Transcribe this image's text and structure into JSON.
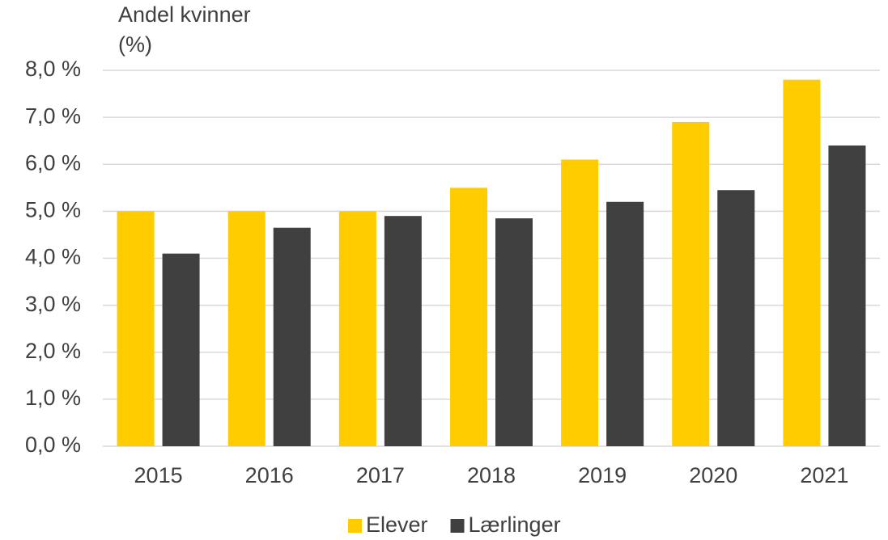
{
  "chart_data": {
    "type": "bar",
    "y_axis_label": [
      "Andel kvinner",
      "(%)"
    ],
    "categories": [
      "2015",
      "2016",
      "2017",
      "2018",
      "2019",
      "2020",
      "2021"
    ],
    "series": [
      {
        "name": "Elever",
        "color": "#ffcc00",
        "values": [
          5.0,
          5.0,
          5.0,
          5.5,
          6.1,
          6.9,
          7.8
        ]
      },
      {
        "name": "Lærlinger",
        "color": "#404040",
        "values": [
          4.1,
          4.65,
          4.9,
          4.85,
          5.2,
          5.45,
          6.4
        ]
      }
    ],
    "ylim": [
      0,
      8
    ],
    "yticks": [
      {
        "value": 0,
        "label": "0,0 %"
      },
      {
        "value": 1,
        "label": "1,0 %"
      },
      {
        "value": 2,
        "label": "2,0 %"
      },
      {
        "value": 3,
        "label": "3,0 %"
      },
      {
        "value": 4,
        "label": "4,0 %"
      },
      {
        "value": 5,
        "label": "5,0 %"
      },
      {
        "value": 6,
        "label": "6,0 %"
      },
      {
        "value": 7,
        "label": "7,0 %"
      },
      {
        "value": 8,
        "label": "8,0 %"
      }
    ],
    "grid": true,
    "legend": "bottom"
  }
}
